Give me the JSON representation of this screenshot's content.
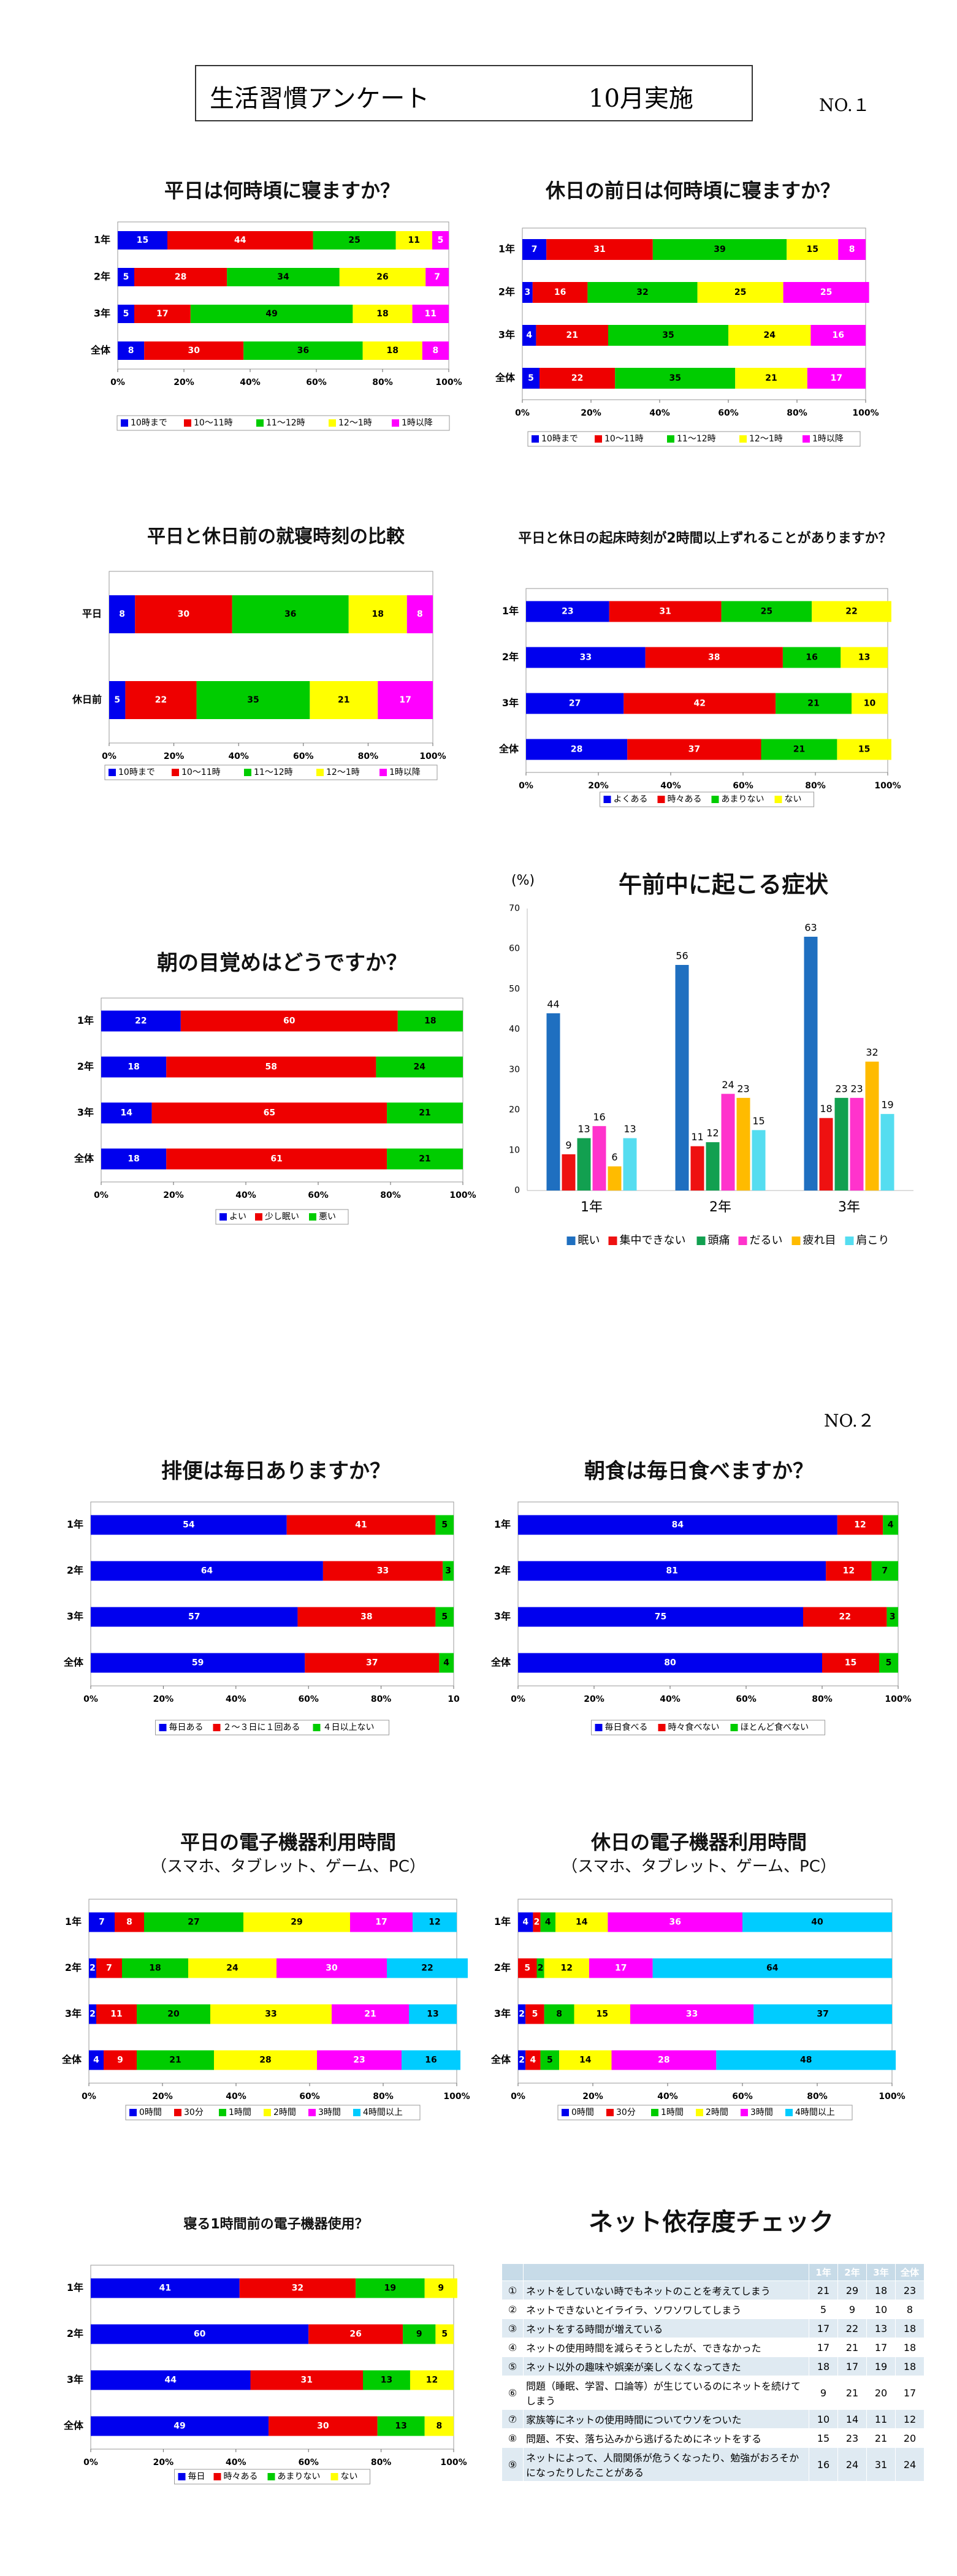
{
  "header": {
    "title": "生活習慣アンケート",
    "when": "10月実施",
    "page1": "NO.１",
    "page2": "NO.２"
  },
  "colors": {
    "blue": "#0000ee",
    "red": "#ee0000",
    "green": "#00cc00",
    "yellow": "#ffff00",
    "magenta": "#ff00ff",
    "cyan": "#00ccff",
    "tblue": "#1f6fc0",
    "tred": "#ee1111",
    "tgreen": "#12a050",
    "tmag": "#ff33cc",
    "torange": "#ffbb00",
    "tcyan": "#55ddf0"
  },
  "chart_data": [
    {
      "id": "c1",
      "type": "bar",
      "orientation": "horizontal-stacked",
      "title": "平日は何時頃に寝ますか？",
      "categories": [
        "1年",
        "2年",
        "3年",
        "全体"
      ],
      "series": [
        {
          "name": "10時まで",
          "values": [
            15,
            5,
            5,
            8
          ]
        },
        {
          "name": "10～11時",
          "values": [
            44,
            28,
            17,
            30
          ]
        },
        {
          "name": "11～12時",
          "values": [
            25,
            34,
            49,
            36
          ]
        },
        {
          "name": "12～1時",
          "values": [
            11,
            26,
            18,
            18
          ]
        },
        {
          "name": "1時以降",
          "values": [
            5,
            7,
            11,
            8
          ]
        }
      ],
      "xticks": [
        "0%",
        "20%",
        "40%",
        "60%",
        "80%",
        "100%"
      ],
      "legend": "bottom"
    },
    {
      "id": "c2",
      "type": "bar",
      "orientation": "horizontal-stacked",
      "title": "休日の前日は何時頃に寝ますか？",
      "categories": [
        "1年",
        "2年",
        "3年",
        "全体"
      ],
      "series": [
        {
          "name": "10時まで",
          "values": [
            7,
            3,
            4,
            5
          ]
        },
        {
          "name": "10～11時",
          "values": [
            31,
            16,
            21,
            22
          ]
        },
        {
          "name": "11～12時",
          "values": [
            39,
            32,
            35,
            35
          ]
        },
        {
          "name": "12～1時",
          "values": [
            15,
            25,
            24,
            21
          ]
        },
        {
          "name": "1時以降",
          "values": [
            8,
            25,
            16,
            17
          ]
        }
      ],
      "xticks": [
        "0%",
        "20%",
        "40%",
        "60%",
        "80%",
        "100%"
      ],
      "legend": "bottom"
    },
    {
      "id": "c3",
      "type": "bar",
      "orientation": "horizontal-stacked",
      "title": "平日と休日前の就寝時刻の比較",
      "categories": [
        "平日",
        "休日前"
      ],
      "series": [
        {
          "name": "10時まで",
          "values": [
            8,
            5
          ]
        },
        {
          "name": "10～11時",
          "values": [
            30,
            22
          ]
        },
        {
          "name": "11～12時",
          "values": [
            36,
            35
          ]
        },
        {
          "name": "12～1時",
          "values": [
            18,
            21
          ]
        },
        {
          "name": "1時以降",
          "values": [
            8,
            17
          ]
        }
      ],
      "xticks": [
        "0%",
        "20%",
        "40%",
        "60%",
        "80%",
        "100%"
      ],
      "legend": "bottom"
    },
    {
      "id": "c4",
      "type": "bar",
      "orientation": "horizontal-stacked",
      "title": "平日と休日の起床時刻が2時間以上ずれることがありますか？",
      "categories": [
        "1年",
        "2年",
        "3年",
        "全体"
      ],
      "series": [
        {
          "name": "よくある",
          "values": [
            23,
            33,
            27,
            28
          ]
        },
        {
          "name": "時々ある",
          "values": [
            31,
            38,
            42,
            37
          ]
        },
        {
          "name": "あまりない",
          "values": [
            25,
            16,
            21,
            21
          ]
        },
        {
          "name": "ない",
          "values": [
            22,
            13,
            10,
            15
          ]
        }
      ],
      "xticks": [
        "0%",
        "20%",
        "40%",
        "60%",
        "80%",
        "100%"
      ],
      "legend": "bottom"
    },
    {
      "id": "c5",
      "type": "bar",
      "orientation": "horizontal-stacked",
      "title": "朝の目覚めはどうですか？",
      "categories": [
        "1年",
        "2年",
        "3年",
        "全体"
      ],
      "series": [
        {
          "name": "よい",
          "values": [
            22,
            18,
            14,
            18
          ]
        },
        {
          "name": "少し眠い",
          "values": [
            60,
            58,
            65,
            61
          ]
        },
        {
          "name": "悪い",
          "values": [
            18,
            24,
            21,
            21
          ]
        }
      ],
      "xticks": [
        "0%",
        "20%",
        "40%",
        "60%",
        "80%",
        "100%"
      ],
      "legend": "bottom"
    },
    {
      "id": "c6",
      "type": "bar",
      "orientation": "vertical-grouped",
      "title": "午前中に起こる症状",
      "unit": "(%)",
      "categories": [
        "1年",
        "2年",
        "3年"
      ],
      "series": [
        {
          "name": "眠い",
          "values": [
            44,
            56,
            63
          ]
        },
        {
          "name": "集中できない",
          "values": [
            9,
            11,
            18
          ]
        },
        {
          "name": "頭痛",
          "values": [
            13,
            12,
            23
          ]
        },
        {
          "name": "だるい",
          "values": [
            16,
            24,
            23
          ]
        },
        {
          "name": "疲れ目",
          "values": [
            6,
            23,
            32
          ]
        },
        {
          "name": "肩こり",
          "values": [
            13,
            15,
            19
          ]
        }
      ],
      "yticks": [
        "0",
        "10",
        "20",
        "30",
        "40",
        "50",
        "60",
        "70"
      ],
      "ylim": [
        0,
        70
      ],
      "legend": "bottom"
    },
    {
      "id": "c7",
      "type": "bar",
      "orientation": "horizontal-stacked",
      "title": "排便は毎日ありますか？",
      "categories": [
        "1年",
        "2年",
        "3年",
        "全体"
      ],
      "series": [
        {
          "name": "毎日ある",
          "values": [
            54,
            64,
            57,
            59
          ]
        },
        {
          "name": "２～３日に１回ある",
          "values": [
            41,
            33,
            38,
            37
          ]
        },
        {
          "name": "４日以上ない",
          "values": [
            5,
            3,
            5,
            4
          ]
        }
      ],
      "xticks": [
        "0%",
        "20%",
        "40%",
        "60%",
        "80%",
        "10"
      ],
      "legend": "bottom"
    },
    {
      "id": "c8",
      "type": "bar",
      "orientation": "horizontal-stacked",
      "title": "朝食は毎日食べますか？",
      "categories": [
        "1年",
        "2年",
        "3年",
        "全体"
      ],
      "series": [
        {
          "name": "毎日食べる",
          "values": [
            84,
            81,
            75,
            80
          ]
        },
        {
          "name": "時々食べない",
          "values": [
            12,
            12,
            22,
            15
          ]
        },
        {
          "name": "ほとんど食べない",
          "values": [
            4,
            7,
            3,
            5
          ]
        }
      ],
      "xticks": [
        "0%",
        "20%",
        "40%",
        "60%",
        "80%",
        "100%"
      ],
      "legend": "bottom"
    },
    {
      "id": "c9",
      "type": "bar",
      "orientation": "horizontal-stacked",
      "title": "平日の電子機器利用時間",
      "subtitle": "（スマホ、タブレット、ゲーム、PC）",
      "categories": [
        "1年",
        "2年",
        "3年",
        "全体"
      ],
      "series": [
        {
          "name": "0時間",
          "values": [
            7,
            2,
            2,
            4
          ]
        },
        {
          "name": "30分",
          "values": [
            8,
            7,
            11,
            9
          ]
        },
        {
          "name": "1時間",
          "values": [
            27,
            18,
            20,
            21
          ]
        },
        {
          "name": "2時間",
          "values": [
            29,
            24,
            33,
            28
          ]
        },
        {
          "name": "3時間",
          "values": [
            17,
            30,
            21,
            23
          ]
        },
        {
          "name": "4時間以上",
          "values": [
            12,
            22,
            13,
            16
          ]
        }
      ],
      "xticks": [
        "0%",
        "20%",
        "40%",
        "60%",
        "80%",
        "100%"
      ],
      "legend": "bottom"
    },
    {
      "id": "c10",
      "type": "bar",
      "orientation": "horizontal-stacked",
      "title": "休日の電子機器利用時間",
      "subtitle": "（スマホ、タブレット、ゲーム、PC）",
      "categories": [
        "1年",
        "2年",
        "3年",
        "全体"
      ],
      "series": [
        {
          "name": "0時間",
          "values": [
            4,
            0,
            2,
            2
          ]
        },
        {
          "name": "30分",
          "values": [
            2,
            5,
            5,
            4
          ]
        },
        {
          "name": "1時間",
          "values": [
            4,
            2,
            8,
            5
          ]
        },
        {
          "name": "2時間",
          "values": [
            14,
            12,
            15,
            14
          ]
        },
        {
          "name": "3時間",
          "values": [
            36,
            17,
            33,
            28
          ]
        },
        {
          "name": "4時間以上",
          "values": [
            40,
            64,
            37,
            48
          ]
        }
      ],
      "xticks": [
        "0%",
        "20%",
        "40%",
        "60%",
        "80%",
        "100%"
      ],
      "legend": "bottom"
    },
    {
      "id": "c11",
      "type": "bar",
      "orientation": "horizontal-stacked",
      "title": "寝る1時間前の電子機器使用？",
      "categories": [
        "1年",
        "2年",
        "3年",
        "全体"
      ],
      "series": [
        {
          "name": "毎日",
          "values": [
            41,
            60,
            44,
            49
          ]
        },
        {
          "name": "時々ある",
          "values": [
            32,
            26,
            31,
            30
          ]
        },
        {
          "name": "あまりない",
          "values": [
            19,
            9,
            13,
            13
          ]
        },
        {
          "name": "ない",
          "values": [
            9,
            5,
            12,
            8
          ]
        }
      ],
      "xticks": [
        "0%",
        "20%",
        "40%",
        "60%",
        "80%",
        "100%"
      ],
      "legend": "bottom"
    },
    {
      "id": "c12",
      "type": "table",
      "title": "ネット依存度チェック",
      "columns": [
        "1年",
        "2年",
        "3年",
        "全体"
      ],
      "rows": [
        {
          "idx": "①",
          "text": "ネットをしていない時でもネットのことを考えてしまう",
          "values": [
            21,
            29,
            18,
            23
          ]
        },
        {
          "idx": "②",
          "text": "ネットできないとイライラ、ソワソワしてしまう",
          "values": [
            5,
            9,
            10,
            8
          ]
        },
        {
          "idx": "③",
          "text": "ネットをする時間が増えている",
          "values": [
            17,
            22,
            13,
            18
          ]
        },
        {
          "idx": "④",
          "text": "ネットの使用時間を減らそうとしたが、できなかった",
          "values": [
            17,
            21,
            17,
            18
          ]
        },
        {
          "idx": "⑤",
          "text": "ネット以外の趣味や娯楽が楽しくなくなってきた",
          "values": [
            18,
            17,
            19,
            18
          ]
        },
        {
          "idx": "⑥",
          "text": "問題（睡眠、学習、口論等）が生じているのにネットを続けてしまう",
          "values": [
            9,
            21,
            20,
            17
          ]
        },
        {
          "idx": "⑦",
          "text": "家族等にネットの使用時間についてウソをついた",
          "values": [
            10,
            14,
            11,
            12
          ]
        },
        {
          "idx": "⑧",
          "text": "問題、不安、落ち込みから逃げるためにネットをする",
          "values": [
            15,
            23,
            21,
            20
          ]
        },
        {
          "idx": "⑨",
          "text": "ネットによって、人間関係が危うくなったり、勉強がおろそかになったりしたことがある",
          "values": [
            16,
            24,
            31,
            24
          ]
        }
      ]
    }
  ]
}
